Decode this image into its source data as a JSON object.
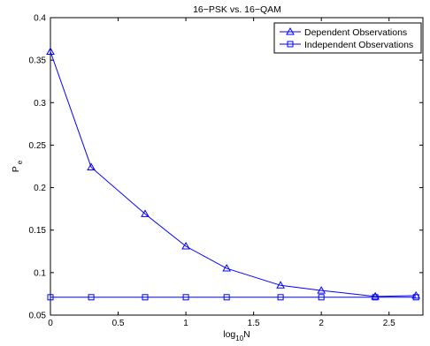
{
  "chart_data": {
    "type": "line",
    "title": "16−PSK vs. 16−QAM",
    "xlabel": {
      "base": "log",
      "sub": "10",
      "tail": "N"
    },
    "ylabel": {
      "base": "P",
      "sub": "e"
    },
    "xlim": [
      0,
      2.75
    ],
    "ylim": [
      0.05,
      0.4
    ],
    "xticks": [
      0,
      0.5,
      1,
      1.5,
      2,
      2.5
    ],
    "xtick_labels": [
      "0",
      "0.5",
      "1",
      "1.5",
      "2",
      "2.5"
    ],
    "yticks": [
      0.05,
      0.1,
      0.15,
      0.2,
      0.25,
      0.3,
      0.35,
      0.4
    ],
    "ytick_labels": [
      "0.05",
      "0.1",
      "0.15",
      "0.2",
      "0.25",
      "0.3",
      "0.35",
      "0.4"
    ],
    "grid": false,
    "legend_position": "top-right",
    "color": "#0000ff",
    "series": [
      {
        "name": "Dependent Observations",
        "marker": "triangle",
        "x": [
          0,
          0.301,
          0.699,
          1,
          1.301,
          1.699,
          2,
          2.398,
          2.699
        ],
        "y": [
          0.36,
          0.224,
          0.169,
          0.131,
          0.105,
          0.085,
          0.079,
          0.072,
          0.073
        ]
      },
      {
        "name": "Independent Observations",
        "marker": "square",
        "x": [
          0,
          0.301,
          0.699,
          1,
          1.301,
          1.699,
          2,
          2.398,
          2.699
        ],
        "y": [
          0.071,
          0.071,
          0.071,
          0.071,
          0.071,
          0.071,
          0.071,
          0.071,
          0.071
        ]
      }
    ]
  }
}
